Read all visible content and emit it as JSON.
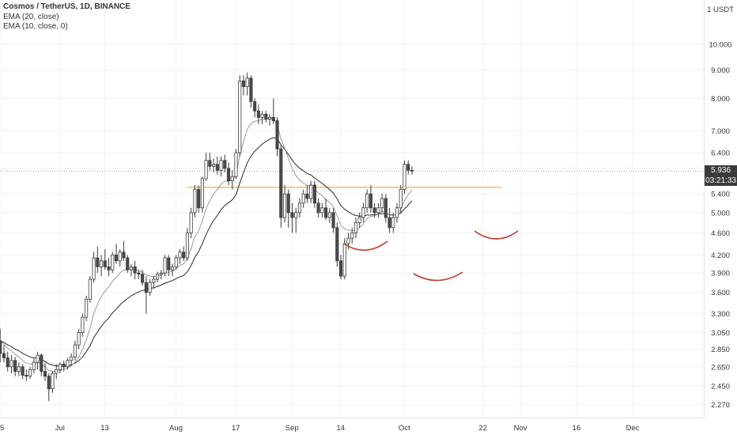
{
  "legend": {
    "symbol": "Cosmos / TetherUS, 1D, BINANCE",
    "ema20": "EMA (20, close)",
    "ema10": "EMA (10, close, 0)"
  },
  "current_price": {
    "value": "5.936",
    "countdown": "03:21:33"
  },
  "colors": {
    "up": "#ffffff",
    "down": "#4a4a4a",
    "wick": "#3a3a3a",
    "resistance": "#f5a623",
    "arcs": "#c0392b",
    "ema20": "#2a2a2a",
    "ema10": "#9a9a9a",
    "last_price_bg": "#3a3a3a"
  },
  "chart_data": {
    "type": "candlestick",
    "title": "Cosmos / TetherUS, 1D, BINANCE",
    "y_axis_unit": "1 USDT",
    "y_scale": "log",
    "ylim": [
      2.15,
      12.0
    ],
    "y_ticks": [
      "10.000",
      "9.000",
      "8.000",
      "7.000",
      "6.400",
      "6.000",
      "5.400",
      "5.000",
      "4.600",
      "4.200",
      "3.900",
      "3.600",
      "3.300",
      "3.050",
      "2.850",
      "2.650",
      "2.450",
      "2.270"
    ],
    "x_ticks": [
      "15",
      "Jul",
      "13",
      "Aug",
      "17",
      "Sep",
      "14",
      "Oct",
      "22",
      "Nov",
      "16",
      "Dec"
    ],
    "start_date": "2019-06-15",
    "end_date": "2019-12-20",
    "resistance_level": 5.55,
    "resistance_from": "2019-08-04",
    "resistance_to": "2019-10-27",
    "candles_ohlc": [
      [
        2.95,
        3.1,
        2.7,
        2.8
      ],
      [
        2.8,
        2.9,
        2.7,
        2.75
      ],
      [
        2.75,
        2.82,
        2.6,
        2.65
      ],
      [
        2.65,
        2.78,
        2.58,
        2.72
      ],
      [
        2.72,
        2.76,
        2.55,
        2.6
      ],
      [
        2.6,
        2.7,
        2.55,
        2.65
      ],
      [
        2.65,
        2.68,
        2.52,
        2.56
      ],
      [
        2.56,
        2.62,
        2.5,
        2.55
      ],
      [
        2.55,
        2.65,
        2.52,
        2.62
      ],
      [
        2.62,
        2.75,
        2.58,
        2.7
      ],
      [
        2.7,
        2.82,
        2.62,
        2.78
      ],
      [
        2.78,
        2.8,
        2.55,
        2.6
      ],
      [
        2.6,
        2.7,
        2.5,
        2.55
      ],
      [
        2.55,
        2.58,
        2.3,
        2.42
      ],
      [
        2.42,
        2.6,
        2.38,
        2.58
      ],
      [
        2.58,
        2.68,
        2.52,
        2.62
      ],
      [
        2.62,
        2.7,
        2.58,
        2.68
      ],
      [
        2.68,
        2.72,
        2.6,
        2.65
      ],
      [
        2.65,
        2.75,
        2.62,
        2.72
      ],
      [
        2.72,
        2.8,
        2.66,
        2.76
      ],
      [
        2.76,
        2.95,
        2.72,
        2.9
      ],
      [
        2.9,
        3.1,
        2.85,
        3.05
      ],
      [
        3.05,
        3.3,
        3.0,
        3.25
      ],
      [
        3.25,
        3.55,
        3.2,
        3.5
      ],
      [
        3.5,
        3.85,
        3.45,
        3.8
      ],
      [
        3.8,
        4.25,
        3.75,
        4.15
      ],
      [
        4.15,
        4.35,
        3.9,
        4.0
      ],
      [
        4.0,
        4.2,
        3.85,
        4.1
      ],
      [
        4.1,
        4.3,
        3.95,
        4.0
      ],
      [
        4.0,
        4.15,
        3.85,
        3.95
      ],
      [
        3.95,
        4.25,
        3.9,
        4.2
      ],
      [
        4.2,
        4.4,
        4.05,
        4.1
      ],
      [
        4.1,
        4.3,
        4.0,
        4.25
      ],
      [
        4.25,
        4.45,
        4.1,
        4.15
      ],
      [
        4.15,
        4.2,
        3.9,
        3.95
      ],
      [
        3.95,
        4.05,
        3.85,
        4.0
      ],
      [
        4.0,
        4.1,
        3.8,
        3.9
      ],
      [
        3.9,
        3.95,
        3.8,
        3.88
      ],
      [
        3.88,
        3.95,
        3.7,
        3.75
      ],
      [
        3.75,
        3.85,
        3.3,
        3.6
      ],
      [
        3.6,
        3.8,
        3.55,
        3.75
      ],
      [
        3.75,
        3.85,
        3.65,
        3.8
      ],
      [
        3.8,
        3.92,
        3.75,
        3.88
      ],
      [
        3.88,
        3.95,
        3.8,
        3.9
      ],
      [
        3.9,
        4.2,
        3.85,
        4.15
      ],
      [
        4.15,
        4.2,
        3.85,
        3.95
      ],
      [
        3.95,
        4.05,
        3.85,
        4.0
      ],
      [
        4.0,
        4.2,
        3.95,
        4.15
      ],
      [
        4.15,
        4.3,
        4.05,
        4.25
      ],
      [
        4.25,
        4.35,
        4.1,
        4.15
      ],
      [
        4.15,
        4.7,
        4.1,
        4.6
      ],
      [
        4.6,
        5.1,
        4.5,
        5.0
      ],
      [
        5.0,
        5.6,
        4.9,
        5.5
      ],
      [
        5.5,
        5.6,
        5.0,
        5.1
      ],
      [
        5.1,
        5.8,
        5.0,
        5.75
      ],
      [
        5.75,
        6.4,
        5.7,
        6.2
      ],
      [
        6.2,
        6.4,
        5.95,
        6.05
      ],
      [
        6.05,
        6.25,
        5.9,
        6.1
      ],
      [
        6.1,
        6.3,
        5.85,
        5.95
      ],
      [
        5.95,
        6.3,
        5.8,
        6.2
      ],
      [
        6.2,
        6.35,
        5.9,
        6.0
      ],
      [
        6.0,
        6.15,
        5.6,
        5.7
      ],
      [
        5.7,
        5.95,
        5.5,
        5.8
      ],
      [
        5.8,
        6.5,
        5.75,
        6.4
      ],
      [
        6.4,
        8.8,
        6.3,
        8.6
      ],
      [
        8.6,
        8.8,
        8.1,
        8.4
      ],
      [
        8.4,
        8.9,
        8.1,
        8.7
      ],
      [
        8.7,
        8.8,
        7.7,
        7.9
      ],
      [
        7.9,
        8.0,
        7.4,
        7.6
      ],
      [
        7.6,
        7.8,
        7.2,
        7.4
      ],
      [
        7.4,
        7.6,
        7.2,
        7.5
      ],
      [
        7.5,
        7.6,
        7.25,
        7.35
      ],
      [
        7.35,
        7.5,
        7.15,
        7.4
      ],
      [
        7.4,
        8.0,
        7.2,
        7.3
      ],
      [
        7.3,
        7.4,
        6.3,
        6.5
      ],
      [
        6.5,
        6.6,
        4.7,
        4.9
      ],
      [
        4.9,
        5.6,
        4.8,
        5.4
      ],
      [
        5.4,
        5.5,
        4.7,
        5.0
      ],
      [
        5.0,
        5.2,
        4.6,
        4.9
      ],
      [
        4.9,
        5.1,
        4.6,
        5.0
      ],
      [
        5.0,
        5.3,
        4.9,
        5.2
      ],
      [
        5.2,
        5.5,
        5.1,
        5.4
      ],
      [
        5.4,
        5.6,
        5.2,
        5.3
      ],
      [
        5.3,
        5.7,
        5.2,
        5.6
      ],
      [
        5.6,
        5.7,
        5.1,
        5.2
      ],
      [
        5.2,
        5.3,
        4.9,
        5.0
      ],
      [
        5.0,
        5.2,
        4.9,
        5.1
      ],
      [
        5.1,
        5.3,
        4.85,
        4.9
      ],
      [
        4.9,
        5.1,
        4.8,
        5.0
      ],
      [
        5.0,
        5.1,
        4.6,
        4.7
      ],
      [
        4.7,
        4.8,
        4.0,
        4.1
      ],
      [
        4.1,
        4.2,
        3.8,
        3.85
      ],
      [
        3.85,
        4.5,
        3.8,
        4.4
      ],
      [
        4.4,
        4.6,
        4.3,
        4.5
      ],
      [
        4.5,
        4.7,
        4.4,
        4.6
      ],
      [
        4.6,
        4.9,
        4.5,
        4.8
      ],
      [
        4.8,
        5.0,
        4.7,
        4.9
      ],
      [
        4.9,
        5.2,
        4.8,
        5.1
      ],
      [
        5.1,
        5.5,
        5.0,
        5.4
      ],
      [
        5.4,
        5.6,
        5.0,
        5.1
      ],
      [
        5.1,
        5.2,
        4.9,
        5.0
      ],
      [
        5.0,
        5.2,
        4.9,
        5.1
      ],
      [
        5.1,
        5.4,
        5.0,
        5.3
      ],
      [
        5.3,
        5.4,
        4.8,
        4.9
      ],
      [
        4.9,
        5.1,
        4.6,
        4.7
      ],
      [
        4.7,
        5.0,
        4.6,
        4.9
      ],
      [
        4.9,
        5.2,
        4.8,
        5.1
      ],
      [
        5.1,
        5.6,
        5.0,
        5.5
      ],
      [
        5.5,
        6.2,
        5.4,
        6.1
      ],
      [
        6.1,
        6.2,
        5.85,
        5.95
      ],
      [
        5.95,
        6.05,
        5.85,
        5.936
      ]
    ],
    "ema20": [
      2.95,
      2.93,
      2.9,
      2.88,
      2.85,
      2.83,
      2.8,
      2.78,
      2.76,
      2.75,
      2.75,
      2.73,
      2.71,
      2.68,
      2.67,
      2.66,
      2.66,
      2.66,
      2.66,
      2.67,
      2.69,
      2.72,
      2.76,
      2.82,
      2.89,
      2.99,
      3.06,
      3.13,
      3.19,
      3.24,
      3.31,
      3.36,
      3.42,
      3.47,
      3.51,
      3.55,
      3.58,
      3.61,
      3.63,
      3.64,
      3.66,
      3.67,
      3.69,
      3.71,
      3.74,
      3.76,
      3.78,
      3.81,
      3.84,
      3.86,
      3.92,
      4.02,
      4.16,
      4.26,
      4.4,
      4.57,
      4.71,
      4.84,
      4.94,
      5.06,
      5.15,
      5.21,
      5.27,
      5.38,
      5.65,
      5.89,
      6.14,
      6.31,
      6.44,
      6.53,
      6.63,
      6.7,
      6.77,
      6.81,
      6.79,
      6.61,
      6.49,
      6.35,
      6.21,
      6.09,
      6.0,
      5.94,
      5.87,
      5.84,
      5.77,
      5.7,
      5.64,
      5.57,
      5.5,
      5.42,
      5.29,
      5.15,
      5.07,
      5.02,
      4.97,
      4.94,
      4.93,
      4.93,
      4.95,
      4.95,
      4.96,
      4.97,
      4.98,
      4.98,
      4.96,
      4.95,
      4.96,
      4.99,
      5.08,
      5.16,
      5.25
    ],
    "ema10": [
      2.95,
      2.91,
      2.86,
      2.83,
      2.79,
      2.76,
      2.72,
      2.69,
      2.68,
      2.68,
      2.7,
      2.68,
      2.65,
      2.61,
      2.6,
      2.6,
      2.61,
      2.62,
      2.64,
      2.66,
      2.7,
      2.76,
      2.85,
      2.96,
      3.11,
      3.3,
      3.43,
      3.54,
      3.62,
      3.68,
      3.77,
      3.83,
      3.9,
      3.95,
      3.95,
      3.96,
      3.95,
      3.94,
      3.91,
      3.87,
      3.85,
      3.84,
      3.85,
      3.86,
      3.91,
      3.91,
      3.93,
      3.97,
      4.02,
      4.05,
      4.15,
      4.31,
      4.53,
      4.63,
      4.83,
      5.08,
      5.25,
      5.4,
      5.5,
      5.62,
      5.69,
      5.69,
      5.71,
      5.83,
      6.33,
      6.69,
      7.05,
      7.21,
      7.28,
      7.3,
      7.34,
      7.34,
      7.35,
      7.34,
      7.19,
      6.77,
      6.52,
      6.24,
      6.0,
      5.82,
      5.71,
      5.65,
      5.59,
      5.59,
      5.52,
      5.42,
      5.36,
      5.27,
      5.22,
      5.12,
      4.94,
      4.74,
      4.68,
      4.65,
      4.64,
      4.65,
      4.7,
      4.77,
      4.88,
      4.92,
      4.94,
      4.97,
      5.03,
      5.0,
      4.95,
      4.94,
      4.97,
      5.07,
      5.25,
      5.38,
      5.49
    ]
  }
}
